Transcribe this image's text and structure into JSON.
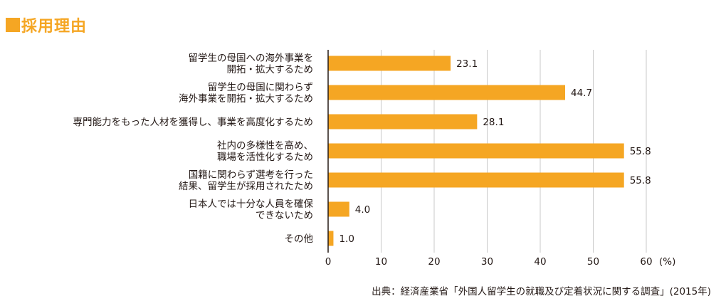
{
  "heading": {
    "title": "採用理由",
    "accent_color": "#f5a623"
  },
  "chart_data": {
    "type": "bar",
    "orientation": "horizontal",
    "title": "採用理由",
    "unit": "(%)",
    "bar_color": "#f5a623",
    "categories": [
      [
        "留学生の母国への海外事業を",
        "開拓・拡大するため"
      ],
      [
        "留学生の母国に関わらず",
        "海外事業を開拓・拡大するため"
      ],
      [
        "専門能力をもった人材を獲得し、事業を高度化するため"
      ],
      [
        "社内の多様性を高め、",
        "職場を活性化するため"
      ],
      [
        "国籍に関わらず選考を行った",
        "結果、留学生が採用されたため"
      ],
      [
        "日本人では十分な人員を確保",
        "できないため"
      ],
      [
        "その他"
      ]
    ],
    "values": [
      23.1,
      44.7,
      28.1,
      55.8,
      55.8,
      4.0,
      1.0
    ],
    "value_labels": [
      "23.1",
      "44.7",
      "28.1",
      "55.8",
      "55.8",
      "4.0",
      "1.0"
    ],
    "xlim": [
      0,
      60
    ],
    "ticks": [
      0,
      10,
      20,
      30,
      40,
      50,
      60
    ],
    "grid": true
  },
  "source": "出典：経済産業省「外国人留学生の就職及び定着状況に関する調査」(2015年)"
}
